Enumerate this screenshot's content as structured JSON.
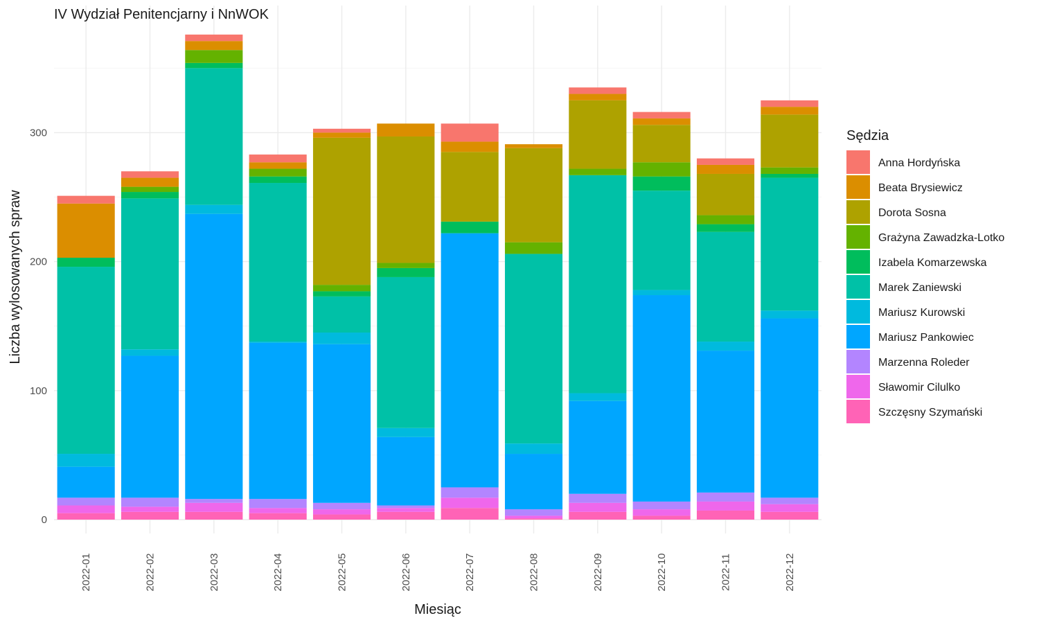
{
  "chart_data": {
    "type": "bar",
    "stacked": true,
    "title": "IV Wydział Penitencjarny i NnWOK",
    "xlabel": "Miesiąc",
    "ylabel": "Liczba wylosowanych spraw",
    "ylim": [
      0,
      380
    ],
    "yticks": [
      0,
      100,
      200,
      300
    ],
    "grid": true,
    "legend": {
      "title": "Sędzia",
      "position": "right"
    },
    "categories": [
      "2022-01",
      "2022-02",
      "2022-03",
      "2022-04",
      "2022-05",
      "2022-06",
      "2022-07",
      "2022-08",
      "2022-09",
      "2022-10",
      "2022-11",
      "2022-12"
    ],
    "series": [
      {
        "name": "Anna Hordyńska",
        "color": "#F8766D",
        "values": [
          6,
          5,
          5,
          6,
          3,
          0,
          14,
          0,
          5,
          5,
          5,
          5
        ]
      },
      {
        "name": "Beata Brysiewicz",
        "color": "#DB8E00",
        "values": [
          42,
          7,
          7,
          5,
          4,
          10,
          8,
          3,
          5,
          5,
          7,
          6
        ]
      },
      {
        "name": "Dorota Sosna",
        "color": "#AEA200",
        "values": [
          0,
          0,
          0,
          0,
          114,
          98,
          54,
          73,
          53,
          29,
          32,
          41
        ]
      },
      {
        "name": "Grażyna Zawadzka-Lotko",
        "color": "#64B200",
        "values": [
          0,
          4,
          10,
          6,
          5,
          4,
          0,
          9,
          5,
          11,
          7,
          5
        ]
      },
      {
        "name": "Izabela Komarzewska",
        "color": "#00BD5C",
        "values": [
          7,
          5,
          4,
          5,
          4,
          7,
          9,
          0,
          0,
          11,
          6,
          3
        ]
      },
      {
        "name": "Marek Zaniewski",
        "color": "#00C1A7",
        "values": [
          145,
          117,
          106,
          123,
          28,
          117,
          0,
          147,
          169,
          77,
          85,
          103
        ]
      },
      {
        "name": "Mariusz Kurowski",
        "color": "#00BADE",
        "values": [
          10,
          5,
          7,
          1,
          9,
          7,
          0,
          8,
          6,
          4,
          7,
          6
        ]
      },
      {
        "name": "Mariusz Pankowiec",
        "color": "#00A6FF",
        "values": [
          24,
          110,
          221,
          121,
          123,
          53,
          197,
          43,
          72,
          160,
          110,
          139
        ]
      },
      {
        "name": "Marzenna Roleder",
        "color": "#B385FF",
        "values": [
          6,
          7,
          3,
          7,
          5,
          2,
          8,
          5,
          7,
          6,
          7,
          5
        ]
      },
      {
        "name": "Sławomir Cilulko",
        "color": "#EF67EB",
        "values": [
          6,
          4,
          7,
          4,
          4,
          3,
          8,
          2,
          7,
          5,
          7,
          6
        ]
      },
      {
        "name": "Szczęsny Szymański",
        "color": "#FF63B6",
        "values": [
          5,
          6,
          6,
          5,
          4,
          6,
          9,
          1,
          6,
          3,
          7,
          6
        ]
      }
    ]
  }
}
